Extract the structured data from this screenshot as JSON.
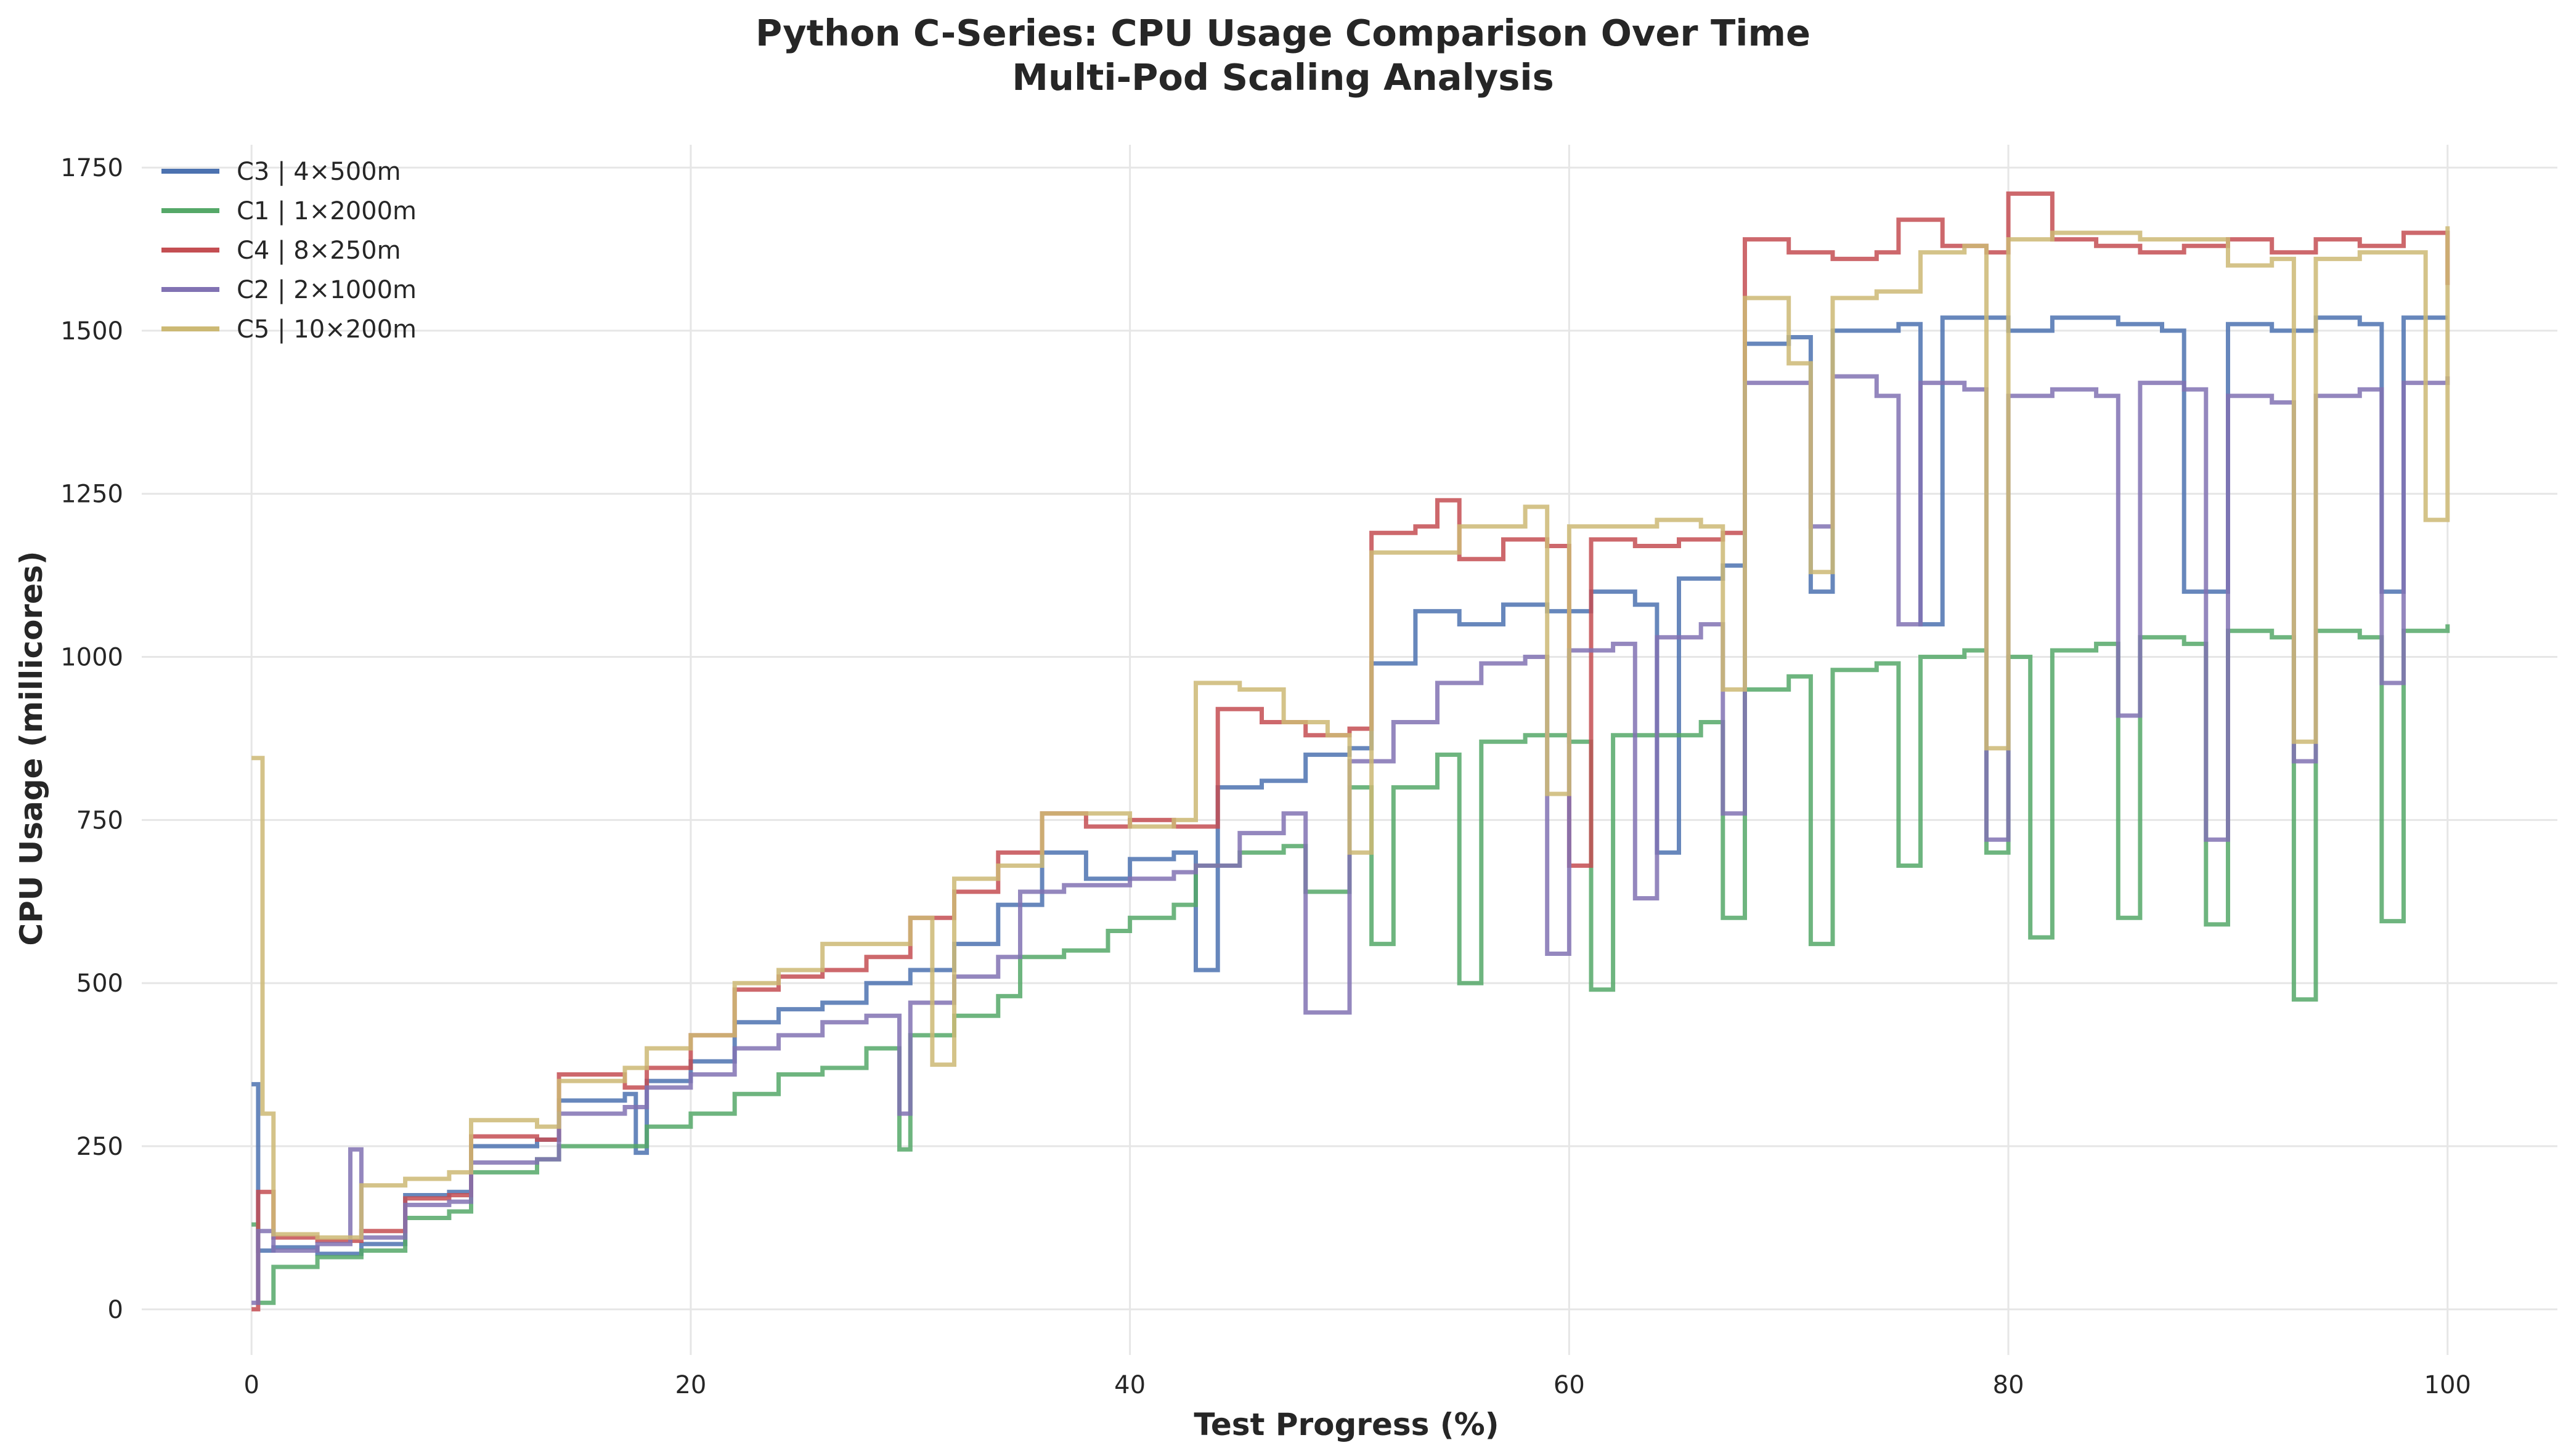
{
  "chart_data": {
    "type": "line",
    "title": "Python C-Series: CPU Usage Comparison Over Time",
    "subtitle": "Multi-Pod Scaling Analysis",
    "xlabel": "Test Progress (%)",
    "ylabel": "CPU Usage (millicores)",
    "xlim": [
      -5,
      105
    ],
    "ylim": [
      -70,
      1785
    ],
    "xticks": [
      0,
      20,
      40,
      60,
      80,
      100
    ],
    "yticks": [
      0,
      250,
      500,
      750,
      1000,
      1250,
      1500,
      1750
    ],
    "grid": true,
    "legend_position": "top-left",
    "series": [
      {
        "name": "C3 | 4×500m",
        "color": "#4C72B0",
        "points": [
          [
            0,
            345
          ],
          [
            0.3,
            90
          ],
          [
            1,
            95
          ],
          [
            3,
            85
          ],
          [
            5,
            100
          ],
          [
            7,
            175
          ],
          [
            9,
            180
          ],
          [
            10,
            250
          ],
          [
            13,
            260
          ],
          [
            14,
            320
          ],
          [
            17,
            330
          ],
          [
            17.5,
            240
          ],
          [
            18,
            350
          ],
          [
            20,
            380
          ],
          [
            22,
            440
          ],
          [
            24,
            460
          ],
          [
            26,
            470
          ],
          [
            28,
            500
          ],
          [
            30,
            520
          ],
          [
            32,
            560
          ],
          [
            34,
            620
          ],
          [
            36,
            700
          ],
          [
            38,
            660
          ],
          [
            40,
            690
          ],
          [
            42,
            700
          ],
          [
            43,
            520
          ],
          [
            44,
            800
          ],
          [
            46,
            810
          ],
          [
            48,
            850
          ],
          [
            50,
            860
          ],
          [
            51,
            990
          ],
          [
            53,
            1070
          ],
          [
            55,
            1050
          ],
          [
            57,
            1080
          ],
          [
            59,
            1070
          ],
          [
            61,
            1100
          ],
          [
            63,
            1080
          ],
          [
            64,
            700
          ],
          [
            65,
            1120
          ],
          [
            67,
            1140
          ],
          [
            68,
            1480
          ],
          [
            70,
            1490
          ],
          [
            71,
            1100
          ],
          [
            72,
            1500
          ],
          [
            75,
            1510
          ],
          [
            76,
            1050
          ],
          [
            77,
            1520
          ],
          [
            80,
            1500
          ],
          [
            82,
            1520
          ],
          [
            85,
            1510
          ],
          [
            87,
            1500
          ],
          [
            88,
            1100
          ],
          [
            90,
            1510
          ],
          [
            92,
            1500
          ],
          [
            94,
            1520
          ],
          [
            96,
            1510
          ],
          [
            97,
            1100
          ],
          [
            98,
            1520
          ],
          [
            100,
            1520
          ]
        ]
      },
      {
        "name": "C1 | 1×2000m",
        "color": "#55A868",
        "points": [
          [
            0,
            130
          ],
          [
            0.3,
            10
          ],
          [
            1,
            65
          ],
          [
            3,
            80
          ],
          [
            5,
            90
          ],
          [
            7,
            140
          ],
          [
            9,
            150
          ],
          [
            10,
            210
          ],
          [
            13,
            230
          ],
          [
            14,
            250
          ],
          [
            17,
            250
          ],
          [
            18,
            280
          ],
          [
            20,
            300
          ],
          [
            22,
            330
          ],
          [
            24,
            360
          ],
          [
            26,
            370
          ],
          [
            28,
            400
          ],
          [
            29.5,
            245
          ],
          [
            30,
            420
          ],
          [
            32,
            450
          ],
          [
            34,
            480
          ],
          [
            35,
            540
          ],
          [
            37,
            550
          ],
          [
            39,
            580
          ],
          [
            40,
            600
          ],
          [
            42,
            620
          ],
          [
            43,
            680
          ],
          [
            45,
            700
          ],
          [
            47,
            710
          ],
          [
            48,
            640
          ],
          [
            50,
            800
          ],
          [
            51,
            560
          ],
          [
            52,
            800
          ],
          [
            54,
            850
          ],
          [
            55,
            500
          ],
          [
            56,
            870
          ],
          [
            58,
            880
          ],
          [
            60,
            870
          ],
          [
            61,
            490
          ],
          [
            62,
            880
          ],
          [
            64,
            880
          ],
          [
            66,
            900
          ],
          [
            67,
            600
          ],
          [
            68,
            950
          ],
          [
            70,
            970
          ],
          [
            71,
            560
          ],
          [
            72,
            980
          ],
          [
            74,
            990
          ],
          [
            75,
            680
          ],
          [
            76,
            1000
          ],
          [
            78,
            1010
          ],
          [
            79,
            700
          ],
          [
            80,
            1000
          ],
          [
            81,
            570
          ],
          [
            82,
            1010
          ],
          [
            84,
            1020
          ],
          [
            85,
            600
          ],
          [
            86,
            1030
          ],
          [
            88,
            1020
          ],
          [
            89,
            590
          ],
          [
            90,
            1040
          ],
          [
            92,
            1030
          ],
          [
            93,
            475
          ],
          [
            94,
            1040
          ],
          [
            96,
            1030
          ],
          [
            97,
            595
          ],
          [
            98,
            1040
          ],
          [
            100,
            1050
          ]
        ]
      },
      {
        "name": "C4 | 8×250m",
        "color": "#C44E52",
        "points": [
          [
            0,
            0
          ],
          [
            0.3,
            180
          ],
          [
            1,
            110
          ],
          [
            3,
            105
          ],
          [
            5,
            120
          ],
          [
            7,
            170
          ],
          [
            9,
            175
          ],
          [
            10,
            265
          ],
          [
            13,
            260
          ],
          [
            14,
            360
          ],
          [
            17,
            340
          ],
          [
            18,
            370
          ],
          [
            20,
            420
          ],
          [
            22,
            490
          ],
          [
            24,
            510
          ],
          [
            26,
            520
          ],
          [
            28,
            540
          ],
          [
            30,
            600
          ],
          [
            32,
            640
          ],
          [
            34,
            700
          ],
          [
            36,
            760
          ],
          [
            38,
            740
          ],
          [
            40,
            750
          ],
          [
            42,
            740
          ],
          [
            44,
            920
          ],
          [
            46,
            900
          ],
          [
            48,
            880
          ],
          [
            50,
            890
          ],
          [
            51,
            1190
          ],
          [
            53,
            1200
          ],
          [
            54,
            1240
          ],
          [
            55,
            1150
          ],
          [
            57,
            1180
          ],
          [
            59,
            1170
          ],
          [
            60,
            680
          ],
          [
            61,
            1180
          ],
          [
            63,
            1170
          ],
          [
            65,
            1180
          ],
          [
            67,
            1190
          ],
          [
            68,
            1640
          ],
          [
            70,
            1620
          ],
          [
            72,
            1610
          ],
          [
            74,
            1620
          ],
          [
            75,
            1670
          ],
          [
            77,
            1630
          ],
          [
            79,
            1620
          ],
          [
            80,
            1710
          ],
          [
            82,
            1640
          ],
          [
            84,
            1630
          ],
          [
            86,
            1620
          ],
          [
            88,
            1630
          ],
          [
            90,
            1640
          ],
          [
            92,
            1620
          ],
          [
            94,
            1640
          ],
          [
            96,
            1630
          ],
          [
            98,
            1650
          ],
          [
            100,
            1570
          ]
        ]
      },
      {
        "name": "C2 | 2×1000m",
        "color": "#8172B3",
        "points": [
          [
            0,
            10
          ],
          [
            0.3,
            120
          ],
          [
            1,
            90
          ],
          [
            3,
            100
          ],
          [
            4.5,
            245
          ],
          [
            5,
            110
          ],
          [
            7,
            160
          ],
          [
            9,
            165
          ],
          [
            10,
            225
          ],
          [
            13,
            230
          ],
          [
            14,
            300
          ],
          [
            17,
            310
          ],
          [
            18,
            340
          ],
          [
            20,
            360
          ],
          [
            22,
            400
          ],
          [
            24,
            420
          ],
          [
            26,
            440
          ],
          [
            28,
            450
          ],
          [
            29.5,
            300
          ],
          [
            30,
            470
          ],
          [
            32,
            510
          ],
          [
            34,
            540
          ],
          [
            35,
            640
          ],
          [
            37,
            650
          ],
          [
            39,
            650
          ],
          [
            40,
            660
          ],
          [
            42,
            670
          ],
          [
            43,
            680
          ],
          [
            45,
            730
          ],
          [
            47,
            760
          ],
          [
            48,
            455
          ],
          [
            50,
            840
          ],
          [
            52,
            900
          ],
          [
            54,
            960
          ],
          [
            56,
            990
          ],
          [
            58,
            1000
          ],
          [
            59,
            545
          ],
          [
            60,
            1010
          ],
          [
            62,
            1020
          ],
          [
            63,
            630
          ],
          [
            64,
            1030
          ],
          [
            66,
            1050
          ],
          [
            67,
            760
          ],
          [
            68,
            1420
          ],
          [
            70,
            1420
          ],
          [
            71,
            1200
          ],
          [
            72,
            1430
          ],
          [
            74,
            1400
          ],
          [
            75,
            1050
          ],
          [
            76,
            1420
          ],
          [
            78,
            1410
          ],
          [
            79,
            720
          ],
          [
            80,
            1400
          ],
          [
            82,
            1410
          ],
          [
            84,
            1400
          ],
          [
            85,
            910
          ],
          [
            86,
            1420
          ],
          [
            88,
            1410
          ],
          [
            89,
            720
          ],
          [
            90,
            1400
          ],
          [
            92,
            1390
          ],
          [
            93,
            840
          ],
          [
            94,
            1400
          ],
          [
            96,
            1410
          ],
          [
            97,
            960
          ],
          [
            98,
            1420
          ],
          [
            100,
            1430
          ]
        ]
      },
      {
        "name": "C5 | 10×200m",
        "color": "#CCB974",
        "points": [
          [
            0,
            845
          ],
          [
            0.5,
            300
          ],
          [
            1,
            115
          ],
          [
            3,
            110
          ],
          [
            5,
            190
          ],
          [
            7,
            200
          ],
          [
            9,
            210
          ],
          [
            10,
            290
          ],
          [
            13,
            280
          ],
          [
            14,
            350
          ],
          [
            17,
            370
          ],
          [
            18,
            400
          ],
          [
            20,
            420
          ],
          [
            22,
            500
          ],
          [
            24,
            520
          ],
          [
            26,
            560
          ],
          [
            28,
            560
          ],
          [
            30,
            600
          ],
          [
            31,
            375
          ],
          [
            32,
            660
          ],
          [
            34,
            680
          ],
          [
            36,
            760
          ],
          [
            38,
            760
          ],
          [
            40,
            740
          ],
          [
            42,
            750
          ],
          [
            43,
            960
          ],
          [
            45,
            950
          ],
          [
            47,
            900
          ],
          [
            49,
            880
          ],
          [
            50,
            700
          ],
          [
            51,
            1160
          ],
          [
            53,
            1160
          ],
          [
            55,
            1200
          ],
          [
            57,
            1200
          ],
          [
            58,
            1230
          ],
          [
            59,
            790
          ],
          [
            60,
            1200
          ],
          [
            62,
            1200
          ],
          [
            64,
            1210
          ],
          [
            66,
            1200
          ],
          [
            67,
            950
          ],
          [
            68,
            1550
          ],
          [
            70,
            1450
          ],
          [
            71,
            1130
          ],
          [
            72,
            1550
          ],
          [
            74,
            1560
          ],
          [
            76,
            1620
          ],
          [
            78,
            1630
          ],
          [
            79,
            860
          ],
          [
            80,
            1640
          ],
          [
            82,
            1650
          ],
          [
            84,
            1650
          ],
          [
            86,
            1640
          ],
          [
            88,
            1640
          ],
          [
            90,
            1600
          ],
          [
            92,
            1610
          ],
          [
            93,
            870
          ],
          [
            94,
            1610
          ],
          [
            96,
            1620
          ],
          [
            98,
            1620
          ],
          [
            99,
            1210
          ],
          [
            100,
            1660
          ]
        ]
      }
    ]
  }
}
